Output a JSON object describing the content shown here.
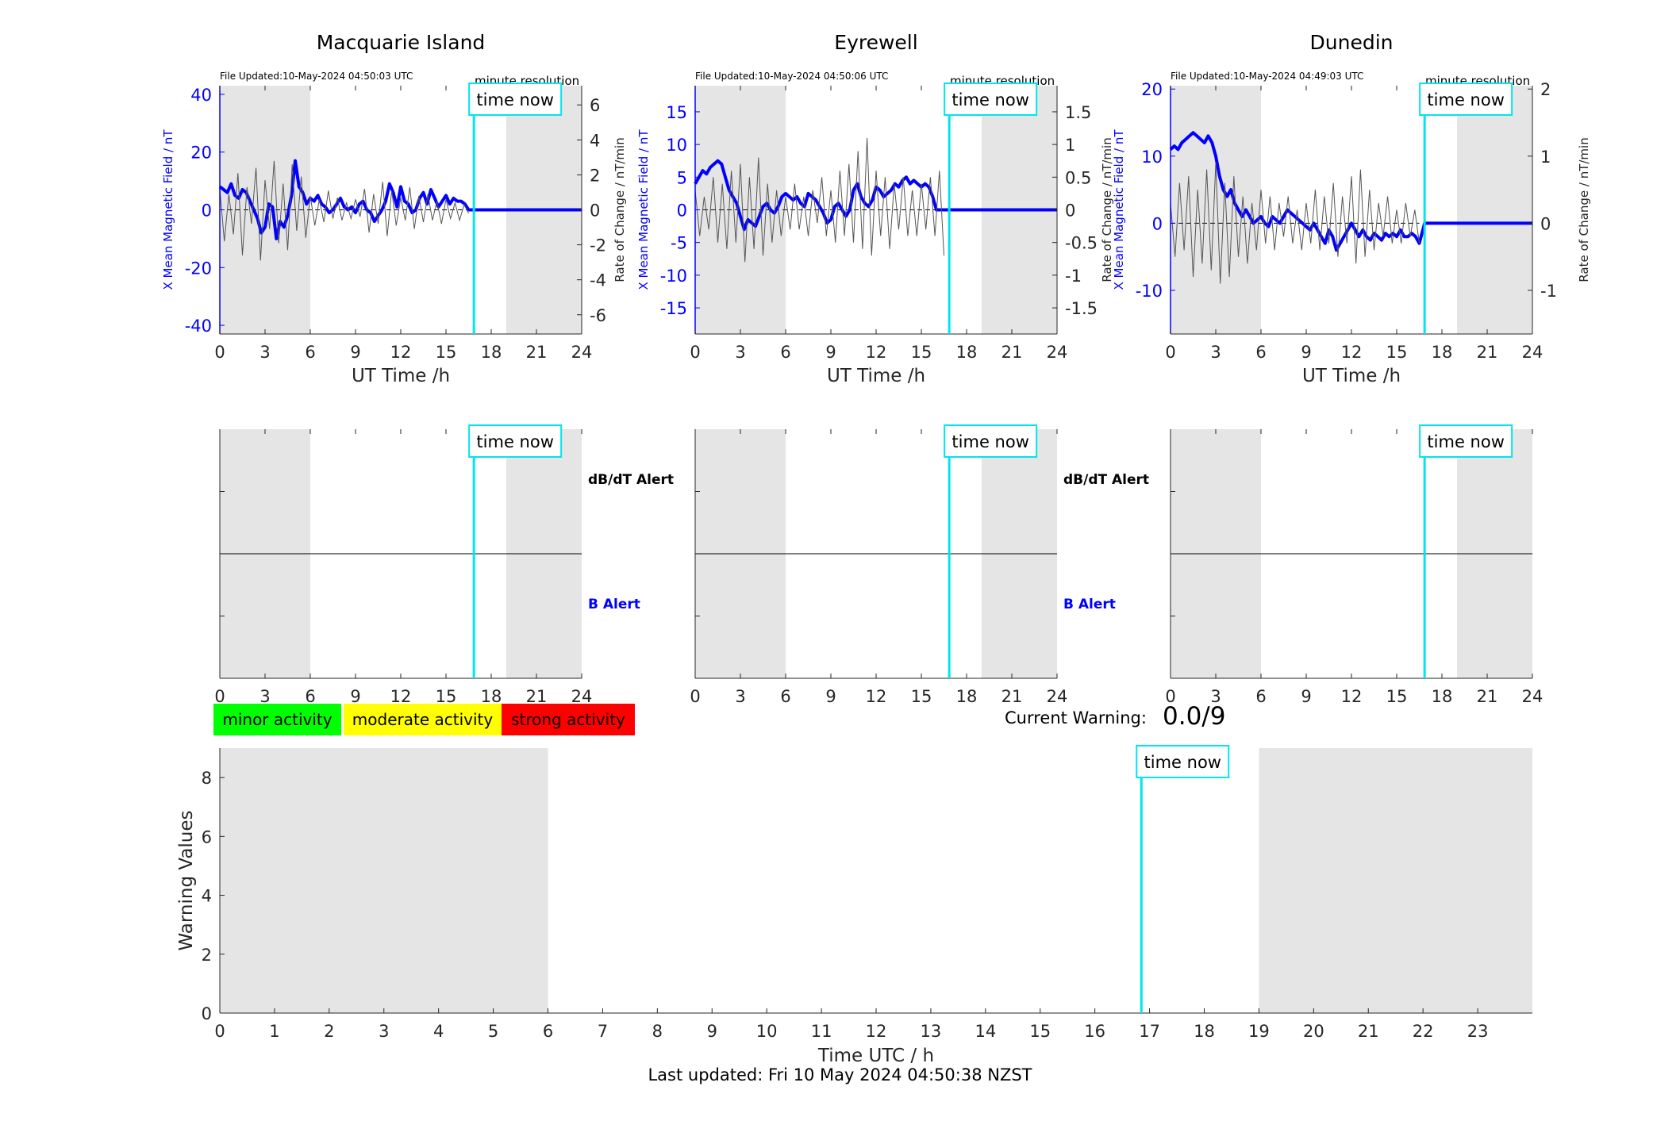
{
  "legend": {
    "minor": "minor activity",
    "moderate": "moderate activity",
    "strong": "strong activity"
  },
  "current_warning": {
    "label": "Current Warning:",
    "value": "0.0/9"
  },
  "footer": "Last updated: Fri 10 May 2024 04:50:38 NZST",
  "time_now_label": "time now",
  "time_now_h": 16.85,
  "night_shading": [
    [
      0,
      6
    ],
    [
      19,
      24
    ]
  ],
  "colors": {
    "field": "#0000ff",
    "rate": "#555555",
    "time_now": "#00e5ee",
    "shade": "#e5e5e5"
  },
  "chart_data": [
    {
      "type": "line",
      "title": "Macquarie Island",
      "file_updated": "File Updated:10-May-2024 04:50:03 UTC",
      "resolution": "minute resolution",
      "xlabel": "UT Time /h",
      "ylabel_left": "X Mean Magnetic Field / nT",
      "ylabel_right": "Rate of Change / nT/min",
      "xlim": [
        0,
        24
      ],
      "ylim_left": [
        -43,
        43
      ],
      "ylim_right": [
        -7.1,
        7.1
      ],
      "xticks": [
        0,
        3,
        6,
        9,
        12,
        15,
        18,
        21,
        24
      ],
      "yticks_left": [
        -40,
        -20,
        0,
        20,
        40
      ],
      "yticks_right": [
        -6,
        -4,
        -2,
        0,
        2,
        4,
        6
      ],
      "series": [
        {
          "axis": "left",
          "x": [
            0,
            0.25,
            0.5,
            0.75,
            1,
            1.25,
            1.5,
            1.75,
            2,
            2.25,
            2.5,
            2.75,
            3,
            3.25,
            3.5,
            3.75,
            4,
            4.25,
            4.5,
            4.75,
            5,
            5.25,
            5.5,
            5.75,
            6,
            6.25,
            6.5,
            6.75,
            7,
            7.25,
            7.5,
            7.75,
            8,
            8.25,
            8.5,
            8.75,
            9,
            9.25,
            9.5,
            9.75,
            10,
            10.25,
            10.5,
            10.75,
            11,
            11.25,
            11.5,
            11.75,
            12,
            12.25,
            12.5,
            12.75,
            13,
            13.25,
            13.5,
            13.75,
            14,
            14.25,
            14.5,
            14.75,
            15,
            15.25,
            15.5,
            15.75,
            16,
            16.25,
            16.5,
            16.85,
            17,
            18,
            19,
            20,
            21,
            22,
            23,
            24
          ],
          "y": [
            8,
            7,
            6,
            9,
            5,
            4,
            7,
            6,
            3,
            0,
            -3,
            -8,
            -6,
            2,
            1,
            -10,
            -4,
            -6,
            -2,
            5,
            17,
            8,
            6,
            2,
            4,
            3,
            5,
            2,
            1,
            -1,
            0,
            2,
            4,
            1,
            0,
            1,
            -1,
            2,
            3,
            0,
            -1,
            -4,
            -2,
            0,
            3,
            9,
            6,
            1,
            8,
            3,
            2,
            -1,
            0,
            4,
            6,
            2,
            7,
            4,
            1,
            3,
            5,
            2,
            4,
            3,
            3,
            2,
            0,
            0,
            0,
            0,
            0,
            0,
            0,
            0,
            0,
            0
          ]
        },
        {
          "axis": "right",
          "x": [
            0,
            0.3,
            0.6,
            0.9,
            1.2,
            1.5,
            1.8,
            2.1,
            2.4,
            2.7,
            3,
            3.3,
            3.6,
            3.9,
            4.2,
            4.5,
            4.8,
            5.1,
            5.4,
            5.7,
            6,
            6.3,
            6.6,
            6.9,
            7.2,
            7.5,
            7.8,
            8.1,
            8.4,
            8.7,
            9,
            9.3,
            9.6,
            9.9,
            10.2,
            10.5,
            10.8,
            11.1,
            11.4,
            11.7,
            12,
            12.3,
            12.6,
            12.9,
            13.2,
            13.5,
            13.8,
            14.1,
            14.4,
            14.7,
            15,
            15.3,
            15.6,
            15.9,
            16.2,
            16.5
          ],
          "y": [
            1.2,
            -1.8,
            0.9,
            -1.4,
            2.1,
            -2.6,
            1.3,
            -0.8,
            2.4,
            -2.9,
            1.7,
            -1.1,
            2.8,
            -1.9,
            1.5,
            -2.3,
            2.6,
            -1.2,
            1.9,
            -1.6,
            0.8,
            -0.9,
            0.6,
            -0.7,
            1.1,
            -0.5,
            0.7,
            -0.6,
            0.4,
            -0.5,
            0.6,
            -0.4,
            1.2,
            -1.3,
            0.9,
            -0.8,
            1.6,
            -1.5,
            1.1,
            -0.9,
            0.7,
            -0.6,
            1.3,
            -1.1,
            0.8,
            -0.7,
            0.9,
            -0.6,
            0.5,
            -0.8,
            0.6,
            -0.5,
            0.4,
            -0.6,
            0.3,
            -0.2
          ]
        }
      ]
    },
    {
      "type": "line",
      "title": "Eyrewell",
      "file_updated": "File Updated:10-May-2024 04:50:06 UTC",
      "resolution": "minute resolution",
      "xlabel": "UT Time /h",
      "ylabel_left": "X Mean Magnetic Field / nT",
      "ylabel_right": "",
      "xlim": [
        0,
        24
      ],
      "ylim_left": [
        -19,
        19
      ],
      "ylim_right": [
        -1.9,
        1.9
      ],
      "xticks": [
        0,
        3,
        6,
        9,
        12,
        15,
        18,
        21,
        24
      ],
      "yticks_left": [
        -15,
        -10,
        -5,
        0,
        5,
        10,
        15
      ],
      "yticks_right": [
        -1.5,
        -1,
        -0.5,
        0,
        0.5,
        1,
        1.5
      ],
      "series": [
        {
          "axis": "left",
          "x": [
            0,
            0.25,
            0.5,
            0.75,
            1,
            1.25,
            1.5,
            1.75,
            2,
            2.25,
            2.5,
            2.75,
            3,
            3.25,
            3.5,
            3.75,
            4,
            4.25,
            4.5,
            4.75,
            5,
            5.25,
            5.5,
            5.75,
            6,
            6.25,
            6.5,
            6.75,
            7,
            7.25,
            7.5,
            7.75,
            8,
            8.25,
            8.5,
            8.75,
            9,
            9.25,
            9.5,
            9.75,
            10,
            10.25,
            10.5,
            10.75,
            11,
            11.25,
            11.5,
            11.75,
            12,
            12.25,
            12.5,
            12.75,
            13,
            13.25,
            13.5,
            13.75,
            14,
            14.25,
            14.5,
            14.75,
            15,
            15.25,
            15.5,
            15.75,
            16,
            16.25,
            16.5,
            16.85,
            17,
            18,
            19,
            20,
            21,
            22,
            23,
            24
          ],
          "y": [
            4,
            5,
            6,
            5.5,
            6.5,
            7,
            7.5,
            7,
            5,
            3,
            2,
            1,
            -1,
            -3,
            -1.5,
            -2,
            -2.5,
            -1,
            0.5,
            1,
            0,
            -0.5,
            0.5,
            2,
            2.5,
            2,
            1.5,
            2,
            1,
            0.5,
            2.5,
            2,
            1.5,
            0.5,
            -0.5,
            -2,
            -1.5,
            0.5,
            1,
            0,
            -1,
            0,
            3,
            4,
            2,
            1,
            0.5,
            1.5,
            3.5,
            3,
            2,
            2.5,
            3,
            4,
            3.5,
            4.5,
            5,
            4,
            4.5,
            4,
            3.5,
            4,
            3.5,
            2,
            0,
            0,
            0,
            0,
            0,
            0,
            0,
            0,
            0,
            0,
            0,
            0
          ]
        },
        {
          "axis": "right",
          "x": [
            0,
            0.3,
            0.6,
            0.9,
            1.2,
            1.5,
            1.8,
            2.1,
            2.4,
            2.7,
            3,
            3.3,
            3.6,
            3.9,
            4.2,
            4.5,
            4.8,
            5.1,
            5.4,
            5.7,
            6,
            6.3,
            6.6,
            6.9,
            7.2,
            7.5,
            7.8,
            8.1,
            8.4,
            8.7,
            9,
            9.3,
            9.6,
            9.9,
            10.2,
            10.5,
            10.8,
            11.1,
            11.4,
            11.7,
            12,
            12.3,
            12.6,
            12.9,
            13.2,
            13.5,
            13.8,
            14.1,
            14.4,
            14.7,
            15,
            15.3,
            15.6,
            15.9,
            16.2,
            16.5
          ],
          "y": [
            0.3,
            -0.4,
            0.2,
            -0.3,
            0.5,
            -0.5,
            0.4,
            -0.6,
            0.6,
            -0.5,
            0.7,
            -0.8,
            0.5,
            -0.6,
            0.8,
            -0.7,
            0.4,
            -0.5,
            0.3,
            -0.4,
            0.2,
            -0.3,
            0.4,
            -0.3,
            0.2,
            -0.4,
            0.3,
            -0.2,
            0.5,
            -0.4,
            0.3,
            -0.5,
            0.6,
            -0.4,
            0.7,
            -0.5,
            0.9,
            -0.6,
            1.1,
            -0.7,
            0.6,
            -0.4,
            0.5,
            -0.6,
            0.4,
            -0.3,
            0.5,
            -0.4,
            0.3,
            -0.4,
            0.4,
            -0.3,
            0.5,
            -0.4,
            0.6,
            -0.7
          ]
        }
      ]
    },
    {
      "type": "line",
      "title": "Dunedin",
      "file_updated": "File Updated:10-May-2024 04:49:03 UTC",
      "resolution": "minute resolution",
      "xlabel": "UT Time /h",
      "ylabel_left": "X Mean Magnetic Field / nT",
      "ylabel_right": "Rate of Change / nT/min",
      "xlim": [
        0,
        24
      ],
      "ylim_left": [
        -16.5,
        20.5
      ],
      "ylim_right": [
        -1.65,
        2.05
      ],
      "xticks": [
        0,
        3,
        6,
        9,
        12,
        15,
        18,
        21,
        24
      ],
      "yticks_left": [
        -10,
        0,
        10,
        20
      ],
      "yticks_right": [
        -1,
        0,
        1,
        2
      ],
      "series": [
        {
          "axis": "left",
          "x": [
            0,
            0.25,
            0.5,
            0.75,
            1,
            1.25,
            1.5,
            1.75,
            2,
            2.25,
            2.5,
            2.75,
            3,
            3.25,
            3.5,
            3.75,
            4,
            4.25,
            4.5,
            4.75,
            5,
            5.25,
            5.5,
            5.75,
            6,
            6.25,
            6.5,
            6.75,
            7,
            7.25,
            7.5,
            7.75,
            8,
            8.25,
            8.5,
            8.75,
            9,
            9.25,
            9.5,
            9.75,
            10,
            10.25,
            10.5,
            10.75,
            11,
            11.25,
            11.5,
            11.75,
            12,
            12.25,
            12.5,
            12.75,
            13,
            13.25,
            13.5,
            13.75,
            14,
            14.25,
            14.5,
            14.75,
            15,
            15.25,
            15.5,
            15.75,
            16,
            16.25,
            16.5,
            16.85,
            17,
            18,
            19,
            20,
            21,
            22,
            23,
            24
          ],
          "y": [
            11,
            11.5,
            11,
            12,
            12.5,
            13,
            13.5,
            13,
            12.5,
            12,
            13,
            12,
            10,
            7,
            5,
            4,
            5,
            3,
            2,
            1,
            2,
            1,
            0,
            0.5,
            1,
            0,
            -0.5,
            1,
            0.5,
            0,
            1,
            2,
            1.5,
            1,
            0.5,
            0,
            -0.5,
            -1,
            0,
            -1,
            -2,
            -3,
            -1,
            -2,
            -4,
            -3,
            -2,
            -1,
            0,
            -1,
            -2,
            -1,
            -2,
            -2.5,
            -1.5,
            -2,
            -2.5,
            -1.5,
            -2,
            -1.5,
            -2,
            -1,
            -2,
            -2,
            -1.5,
            -2,
            -3,
            0,
            0,
            0,
            0,
            0,
            0,
            0,
            0,
            0
          ]
        },
        {
          "axis": "right",
          "x": [
            0,
            0.3,
            0.6,
            0.9,
            1.2,
            1.5,
            1.8,
            2.1,
            2.4,
            2.7,
            3,
            3.3,
            3.6,
            3.9,
            4.2,
            4.5,
            4.8,
            5.1,
            5.4,
            5.7,
            6,
            6.3,
            6.6,
            6.9,
            7.2,
            7.5,
            7.8,
            8.1,
            8.4,
            8.7,
            9,
            9.3,
            9.6,
            9.9,
            10.2,
            10.5,
            10.8,
            11.1,
            11.4,
            11.7,
            12,
            12.3,
            12.6,
            12.9,
            13.2,
            13.5,
            13.8,
            14.1,
            14.4,
            14.7,
            15,
            15.3,
            15.6,
            15.9,
            16.2,
            16.5
          ],
          "y": [
            0.3,
            -0.5,
            0.6,
            -0.4,
            0.7,
            -0.8,
            0.5,
            -0.6,
            0.8,
            -0.7,
            0.9,
            -0.9,
            0.6,
            -0.8,
            0.7,
            -0.5,
            0.4,
            -0.6,
            0.3,
            -0.4,
            0.5,
            -0.3,
            0.4,
            -0.4,
            0.3,
            -0.2,
            0.4,
            -0.3,
            0.2,
            -0.4,
            0.3,
            -0.3,
            0.5,
            -0.4,
            0.4,
            -0.3,
            0.6,
            -0.5,
            0.4,
            -0.3,
            0.7,
            -0.6,
            0.8,
            -0.5,
            0.5,
            -0.4,
            0.3,
            -0.2,
            0.4,
            -0.3,
            0.2,
            -0.3,
            0.3,
            -0.2,
            0.2,
            -0.3
          ]
        }
      ]
    },
    {
      "type": "line",
      "title": "",
      "label_upper": "dB/dT Alert",
      "label_lower": "B Alert",
      "xlim": [
        0,
        24
      ],
      "xticks": [
        0,
        3,
        6,
        9,
        12,
        15,
        18,
        21,
        24
      ],
      "series": []
    },
    {
      "type": "line",
      "title": "",
      "label_upper": "dB/dT Alert",
      "label_lower": "B Alert",
      "xlim": [
        0,
        24
      ],
      "xticks": [
        0,
        3,
        6,
        9,
        12,
        15,
        18,
        21,
        24
      ],
      "series": []
    },
    {
      "type": "line",
      "title": "",
      "xlim": [
        0,
        24
      ],
      "xticks": [
        0,
        3,
        6,
        9,
        12,
        15,
        18,
        21,
        24
      ],
      "series": []
    },
    {
      "type": "bar",
      "title": "",
      "xlabel": "Time UTC / h",
      "ylabel": "Warning Values",
      "xlim": [
        0,
        24
      ],
      "ylim": [
        0,
        9
      ],
      "xticks": [
        0,
        1,
        2,
        3,
        4,
        5,
        6,
        7,
        8,
        9,
        10,
        11,
        12,
        13,
        14,
        15,
        16,
        17,
        18,
        19,
        20,
        21,
        22,
        23
      ],
      "yticks": [
        0,
        2,
        4,
        6,
        8
      ],
      "values": []
    }
  ]
}
